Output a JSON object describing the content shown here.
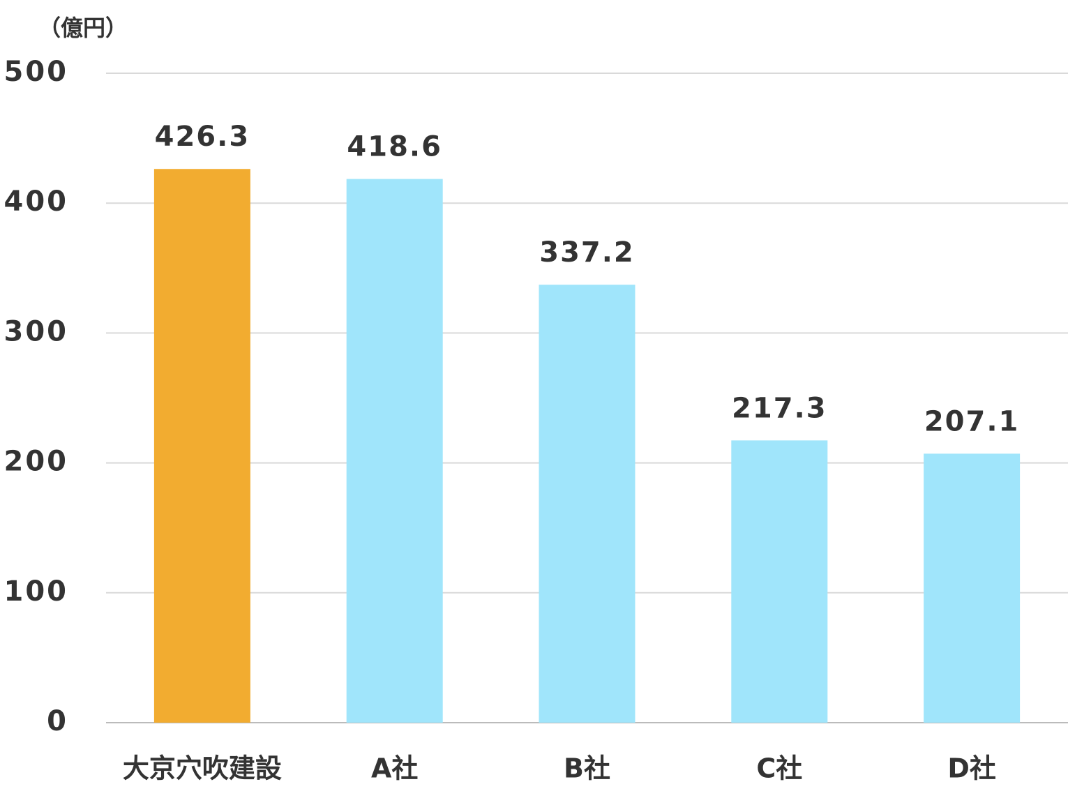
{
  "chart_data": {
    "type": "bar",
    "y_axis_label": "（億円）",
    "categories": [
      "大京穴吹建設",
      "A社",
      "B社",
      "C社",
      "D社"
    ],
    "values": [
      426.3,
      418.6,
      337.2,
      217.3,
      207.1
    ],
    "colors": [
      "#f2ac30",
      "#a0e5fb",
      "#a0e5fb",
      "#a0e5fb",
      "#a0e5fb"
    ],
    "ylim": [
      0,
      500
    ],
    "yticks": [
      0,
      100,
      200,
      300,
      400,
      500
    ],
    "grid": true
  }
}
